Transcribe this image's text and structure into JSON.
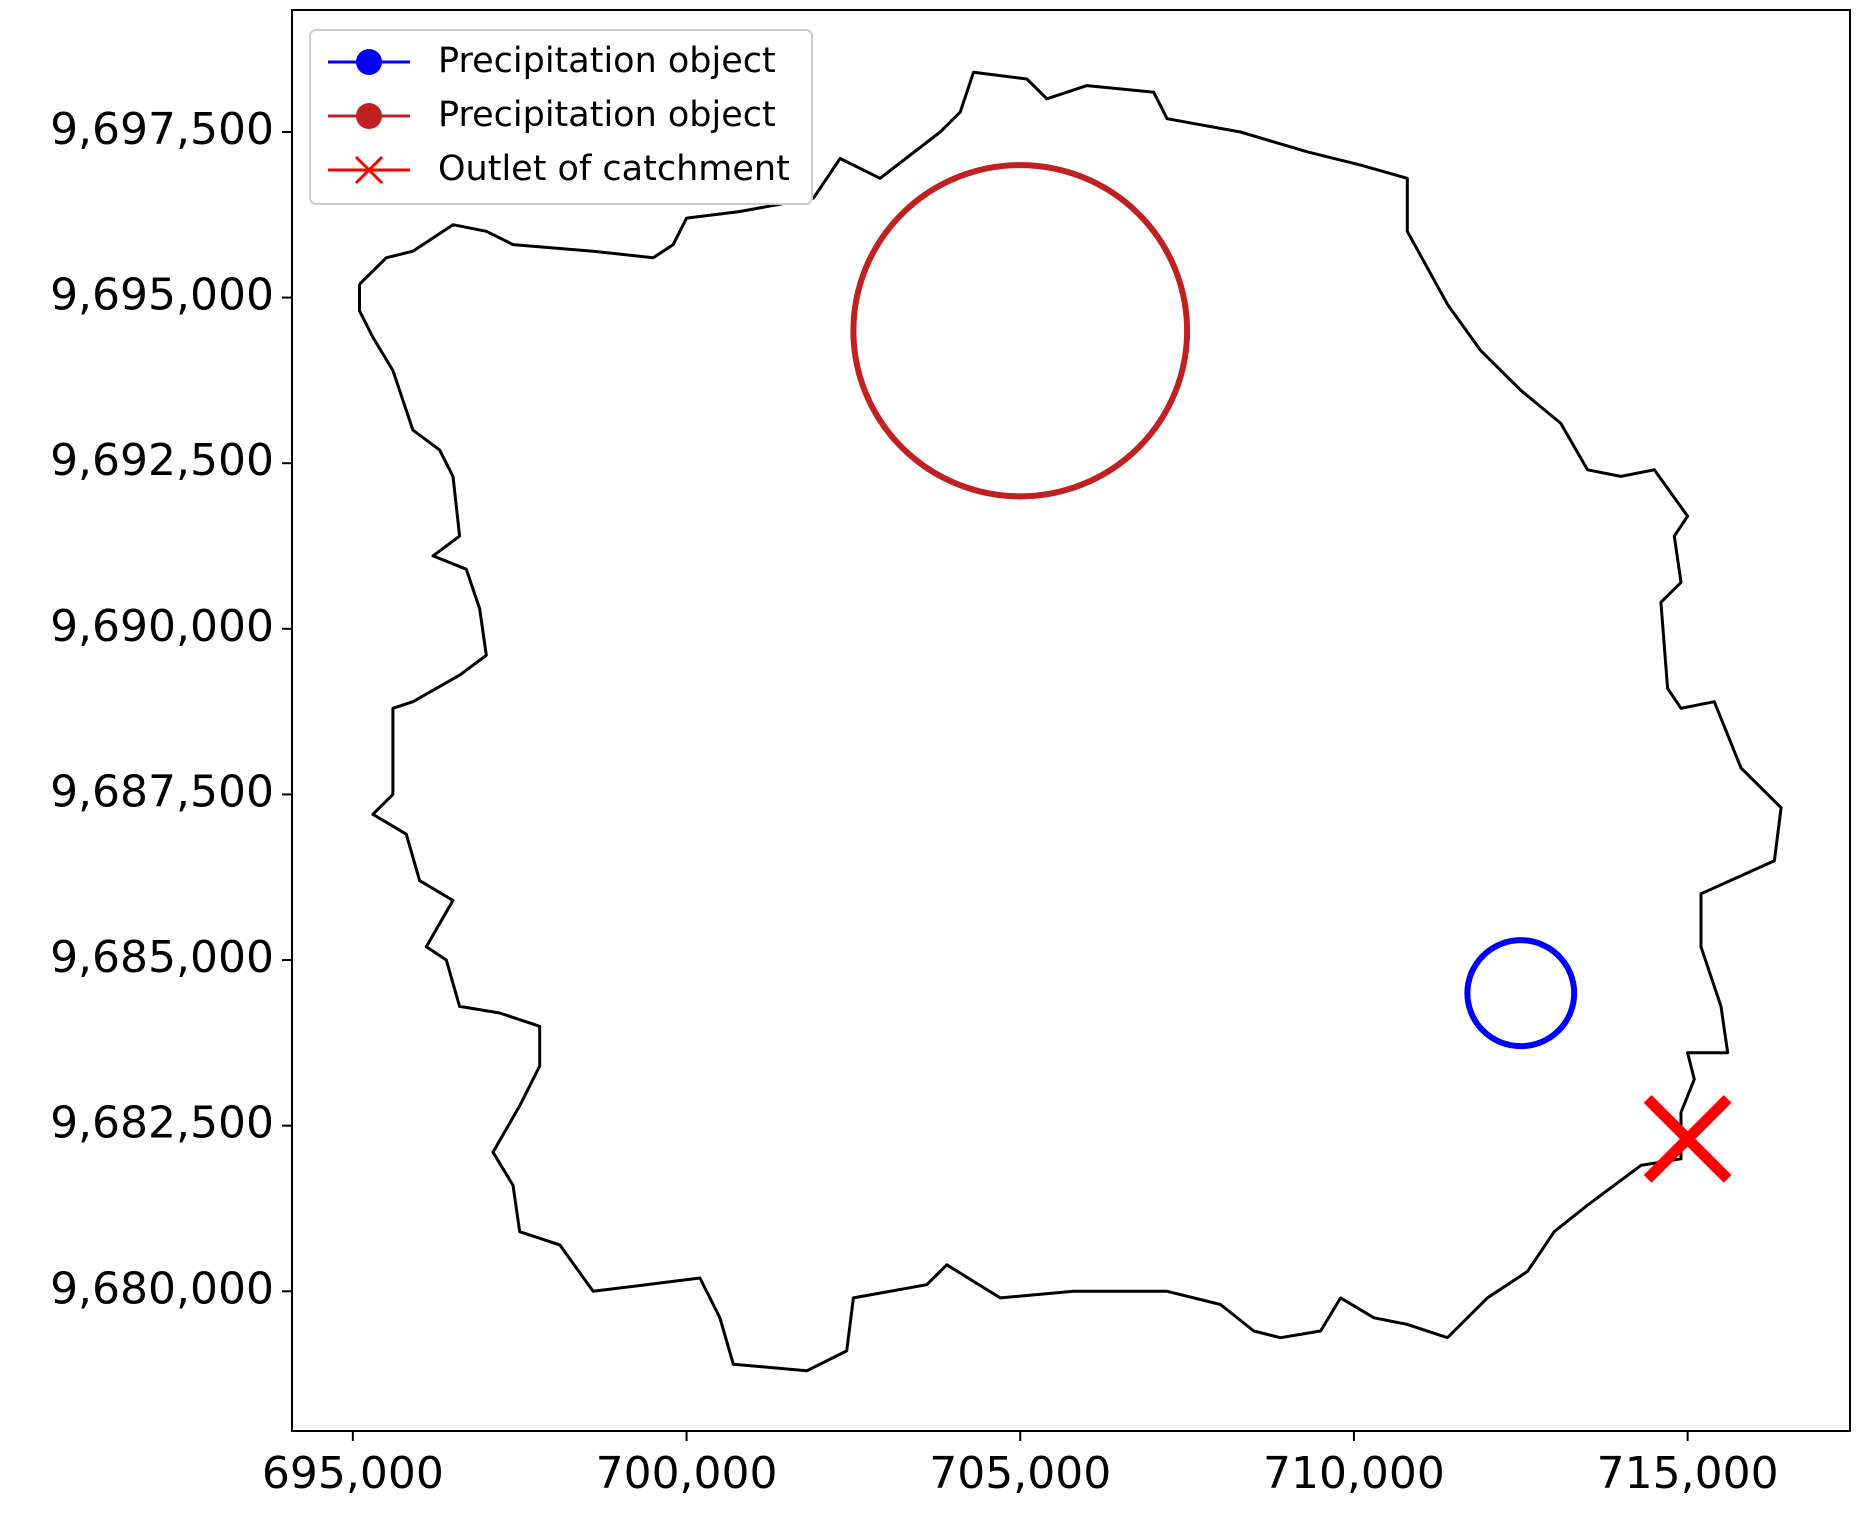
{
  "chart_data": {
    "type": "map",
    "xlim": [
      694088,
      717433
    ],
    "ylim": [
      9677891,
      9699341
    ],
    "xticks": [
      {
        "value": 695000,
        "label": "695,000"
      },
      {
        "value": 700000,
        "label": "700,000"
      },
      {
        "value": 705000,
        "label": "705,000"
      },
      {
        "value": 710000,
        "label": "710,000"
      },
      {
        "value": 715000,
        "label": "715,000"
      }
    ],
    "yticks": [
      {
        "value": 9680000,
        "label": "9,680,000"
      },
      {
        "value": 9682500,
        "label": "9,682,500"
      },
      {
        "value": 9685000,
        "label": "9,685,000"
      },
      {
        "value": 9687500,
        "label": "9,687,500"
      },
      {
        "value": 9690000,
        "label": "9,690,000"
      },
      {
        "value": 9692500,
        "label": "9,692,500"
      },
      {
        "value": 9695000,
        "label": "9,695,000"
      },
      {
        "value": 9697500,
        "label": "9,697,500"
      }
    ],
    "legend": "upper left",
    "boundary": {
      "color": "#000000",
      "x": [
        695100,
        695500,
        695900,
        696500,
        697000,
        697400,
        698600,
        699500,
        699800,
        700000,
        700800,
        701900,
        702300,
        702900,
        703800,
        704100,
        704300,
        705100,
        705400,
        706000,
        707000,
        707200,
        708300,
        709300,
        710100,
        710800,
        710800,
        711400,
        711900,
        712500,
        713100,
        713500,
        714000,
        714500,
        715000,
        714800,
        714900,
        714600,
        714700,
        714900,
        715400,
        715800,
        716400,
        716300,
        715200,
        715200,
        715500,
        715600,
        715000,
        715100,
        714900,
        714900,
        714300,
        713500,
        713000,
        712600,
        712000,
        711400,
        710800,
        710300,
        709800,
        709500,
        708900,
        708500,
        708000,
        707200,
        705800,
        704700,
        703900,
        703600,
        702500,
        702400,
        701800,
        700700,
        700500,
        700200,
        698600,
        698100,
        697500,
        697400,
        697100,
        697500,
        697800,
        697800,
        697200,
        696600,
        696400,
        696100,
        696500,
        696000,
        695800,
        695300,
        695600,
        695600,
        695900,
        696600,
        697000,
        696900,
        696700,
        696200,
        696600,
        696500,
        696300,
        695900,
        695600,
        695300,
        695100,
        695100
      ],
      "y": [
        9695200,
        9695600,
        9695700,
        9696100,
        9696000,
        9695800,
        9695700,
        9695600,
        9695800,
        9696200,
        9696300,
        9696500,
        9697100,
        9696800,
        9697500,
        9697800,
        9698400,
        9698300,
        9698000,
        9698200,
        9698100,
        9697700,
        9697500,
        9697200,
        9697000,
        9696800,
        9696000,
        9694900,
        9694200,
        9693600,
        9693100,
        9692400,
        9692300,
        9692400,
        9691700,
        9691400,
        9690700,
        9690400,
        9689100,
        9688800,
        9688900,
        9687900,
        9687300,
        9686500,
        9686000,
        9685200,
        9684300,
        9683600,
        9683600,
        9683200,
        9682700,
        9682000,
        9681900,
        9681300,
        9680900,
        9680300,
        9679900,
        9679300,
        9679500,
        9679600,
        9679900,
        9679400,
        9679300,
        9679400,
        9679800,
        9680000,
        9680000,
        9679900,
        9680400,
        9680100,
        9679900,
        9679100,
        9678800,
        9678900,
        9679600,
        9680200,
        9680000,
        9680700,
        9680900,
        9681600,
        9682100,
        9682800,
        9683400,
        9684000,
        9684200,
        9684300,
        9685000,
        9685200,
        9685900,
        9686200,
        9686900,
        9687200,
        9687500,
        9688800,
        9688900,
        9689300,
        9689600,
        9690300,
        9690900,
        9691100,
        9691400,
        9692300,
        9692700,
        9693000,
        9693900,
        9694400,
        9694800,
        9695200
      ]
    },
    "circles": [
      {
        "name": "Precipitation object",
        "color": "#0000ff",
        "x": 712500,
        "y": 9684500,
        "radius": 800
      },
      {
        "name": "Precipitation object",
        "color": "#c02020",
        "x": 705000,
        "y": 9694500,
        "radius": 2500
      }
    ],
    "outlet": {
      "name": "Outlet of catchment",
      "color": "#ff0000",
      "x": 715000,
      "y": 9682300
    }
  }
}
